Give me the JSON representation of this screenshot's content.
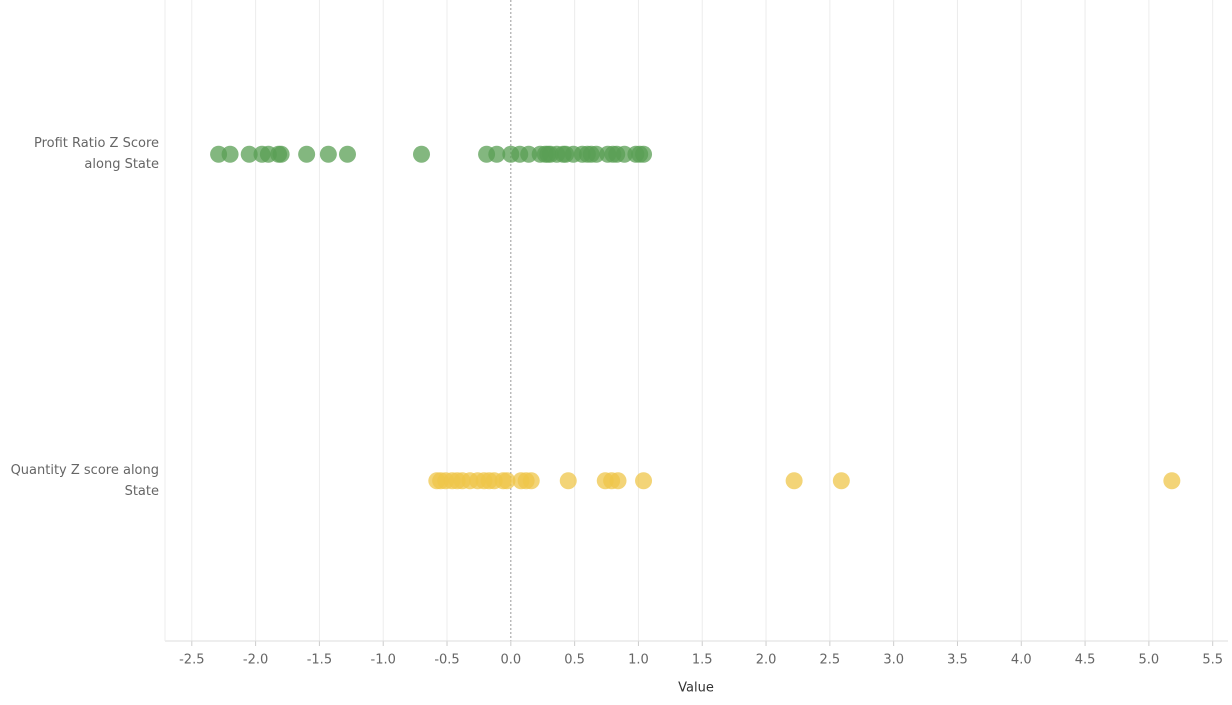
{
  "chart_data": {
    "type": "strip",
    "x_label": "Value",
    "categories": [
      "Profit Ratio Z Score along State",
      "Quantity Z score along State"
    ],
    "series": [
      {
        "color": "#5a9f54",
        "values": [
          -2.29,
          -2.2,
          -2.05,
          -1.95,
          -1.9,
          -1.82,
          -1.8,
          -1.6,
          -1.43,
          -1.28,
          -0.7,
          -0.19,
          -0.11,
          0.0,
          0.07,
          0.14,
          0.23,
          0.27,
          0.29,
          0.31,
          0.36,
          0.41,
          0.43,
          0.49,
          0.56,
          0.6,
          0.63,
          0.67,
          0.76,
          0.8,
          0.83,
          0.89,
          0.98,
          1.01,
          1.04
        ]
      },
      {
        "color": "#efc64a",
        "values": [
          -0.58,
          -0.55,
          -0.51,
          -0.46,
          -0.42,
          -0.38,
          -0.32,
          -0.26,
          -0.21,
          -0.17,
          -0.13,
          -0.06,
          -0.03,
          0.08,
          0.12,
          0.16,
          0.45,
          0.74,
          0.79,
          0.84,
          1.04,
          2.22,
          2.59,
          5.18
        ]
      }
    ],
    "xlim": [
      -2.71,
      5.62
    ],
    "xticks": [
      -2.5,
      {
        "value": -2,
        "label": "-2.0"
      },
      -1.5,
      {
        "value": -1,
        "label": "-1.0"
      },
      -0.5,
      {
        "value": 0,
        "label": "0.0"
      },
      0.5,
      {
        "value": 1,
        "label": "1.0"
      },
      1.5,
      {
        "value": 2,
        "label": "2.0"
      },
      2.5,
      {
        "value": 3,
        "label": "3.0"
      },
      3.5,
      {
        "value": 4,
        "label": "4.0"
      },
      4.5,
      {
        "value": 5,
        "label": "5.0"
      },
      5.5
    ],
    "grid": true
  }
}
